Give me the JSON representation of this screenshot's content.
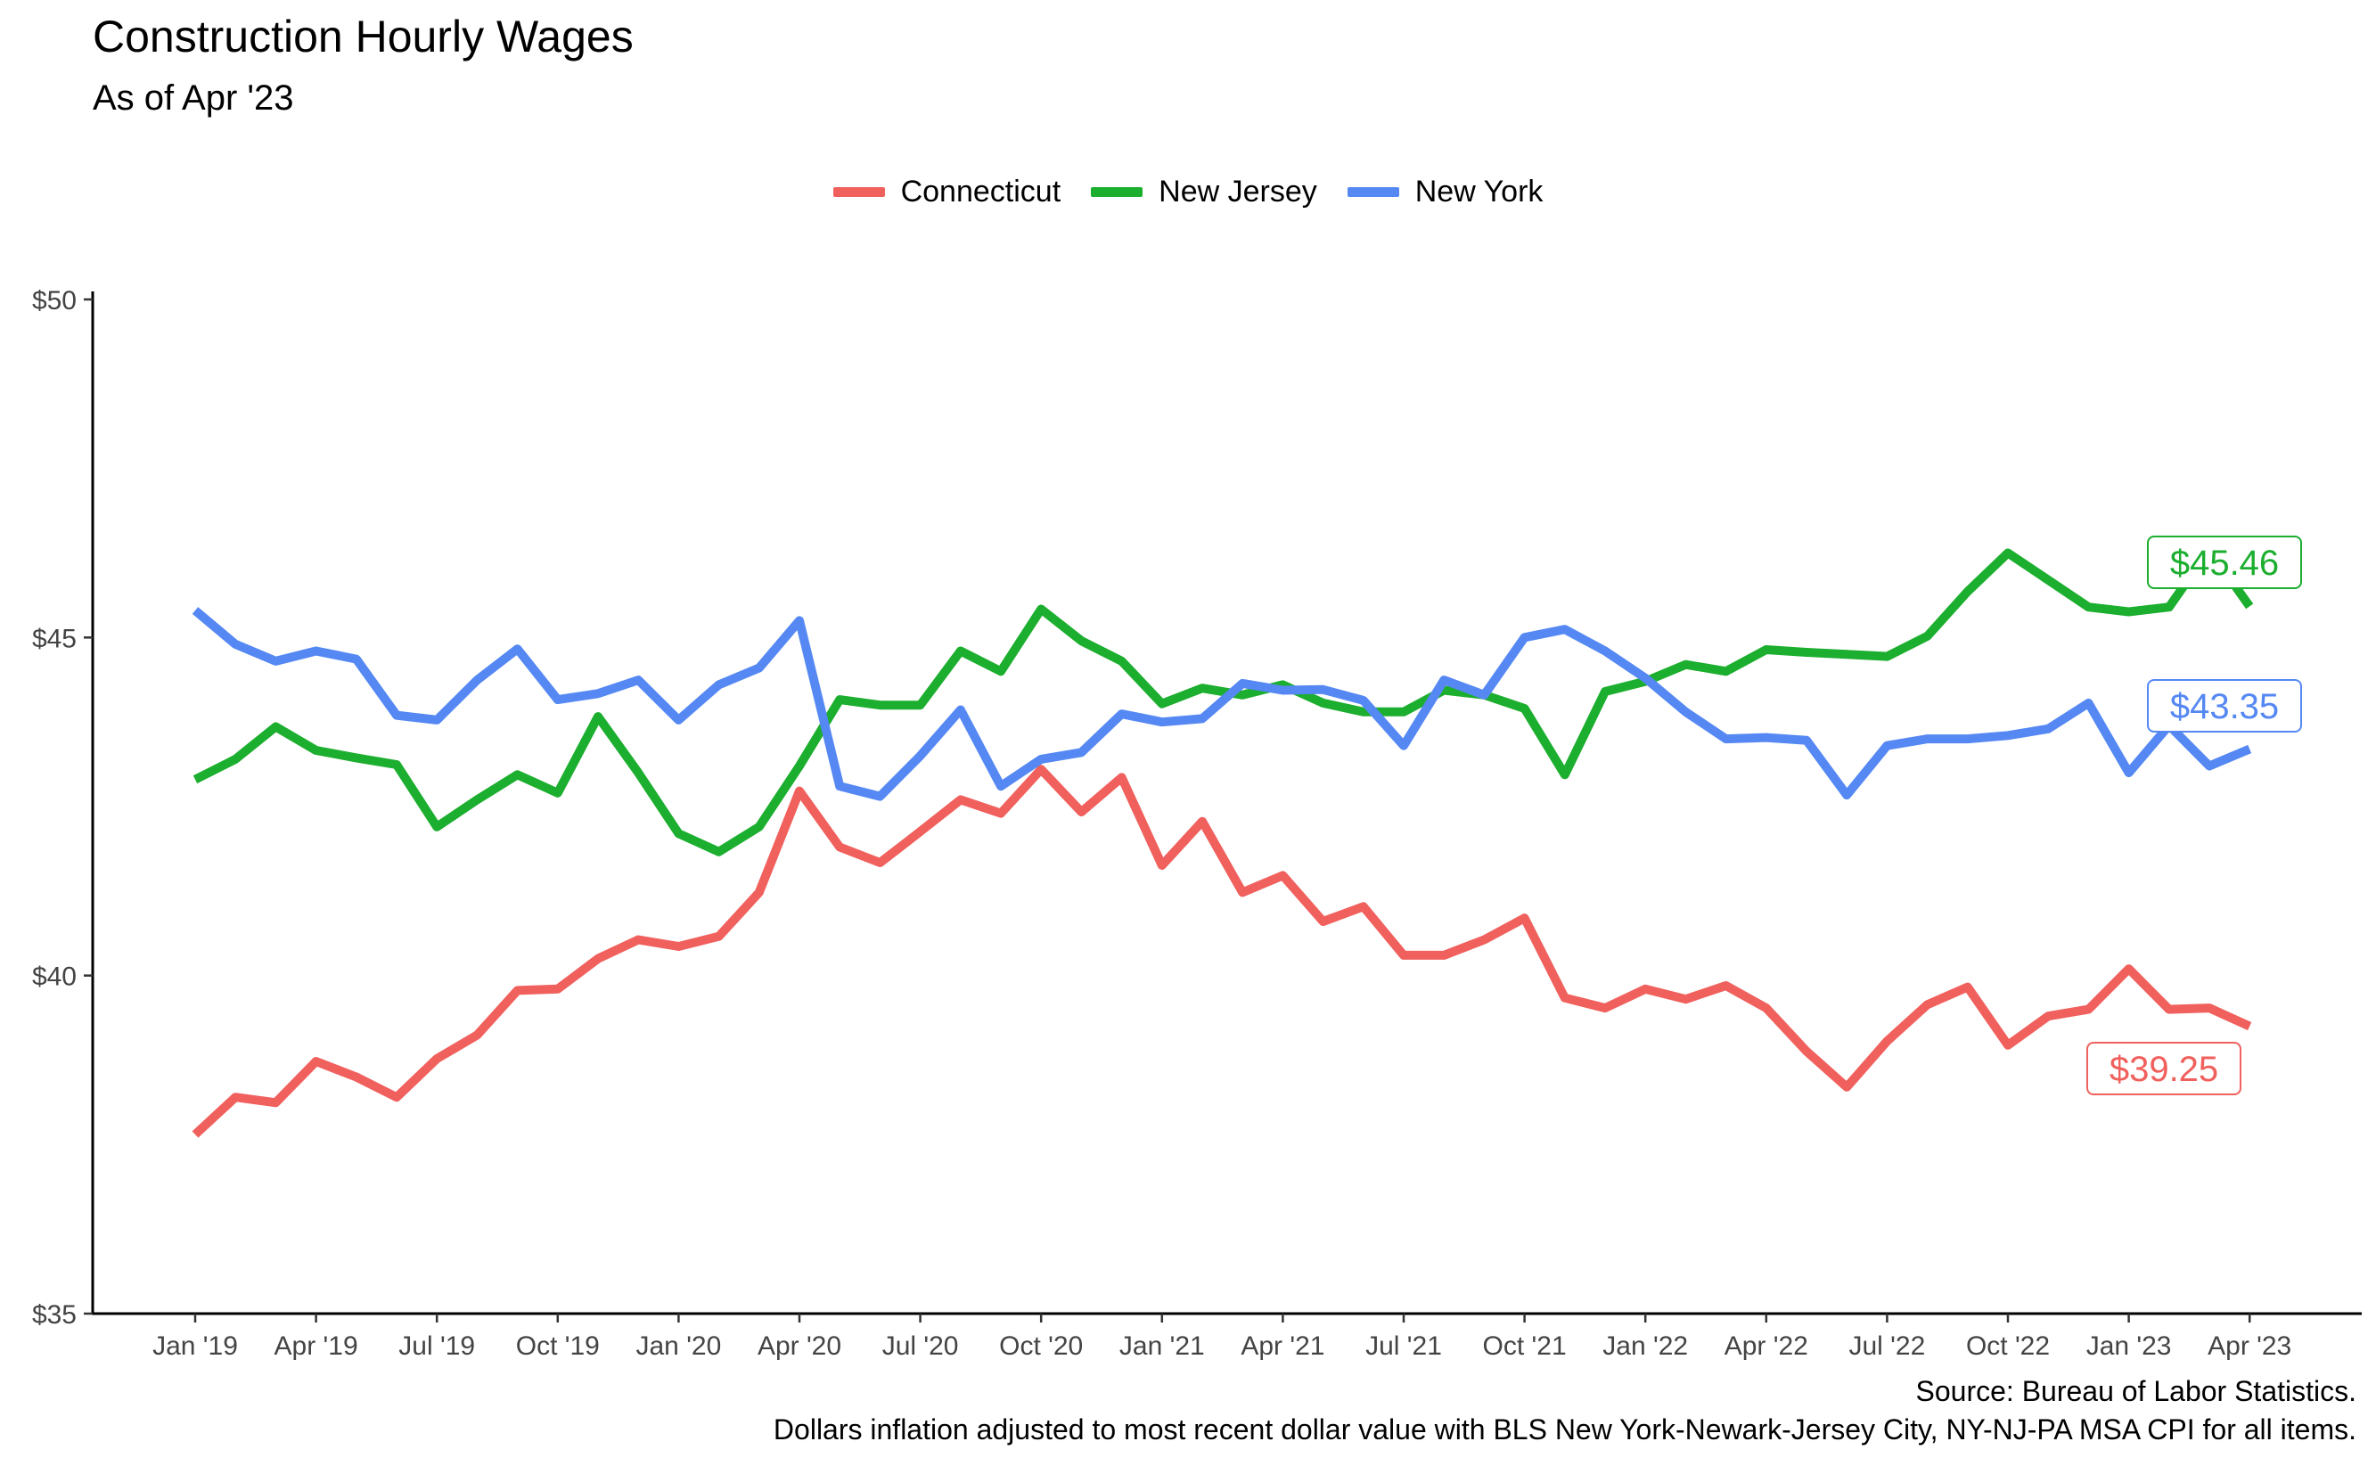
{
  "chart_data": {
    "type": "line",
    "title": "Construction Hourly Wages",
    "subtitle": "As of Apr '23",
    "caption_source": "Source: Bureau of Labor Statistics.",
    "caption_note": "Dollars inflation adjusted to most recent dollar value with BLS New York-Newark-Jersey City, NY-NJ-PA MSA CPI for all items.",
    "ylim": [
      35,
      50
    ],
    "y_ticks": [
      35,
      40,
      45,
      50
    ],
    "y_tick_labels": [
      "$35",
      "$40",
      "$45",
      "$50"
    ],
    "x_ticks": [
      0,
      3,
      6,
      9,
      12,
      15,
      18,
      21,
      24,
      27,
      30,
      33,
      36,
      39,
      42,
      45,
      48,
      51
    ],
    "x_tick_labels": [
      "Jan '19",
      "Apr '19",
      "Jul '19",
      "Oct '19",
      "Jan '20",
      "Apr '20",
      "Jul '20",
      "Oct '20",
      "Jan '21",
      "Apr '21",
      "Jul '21",
      "Oct '21",
      "Jan '22",
      "Apr '22",
      "Jul '22",
      "Oct '22",
      "Jan '23",
      "Apr '23"
    ],
    "x": [
      "Jan '19",
      "Feb '19",
      "Mar '19",
      "Apr '19",
      "May '19",
      "Jun '19",
      "Jul '19",
      "Aug '19",
      "Sep '19",
      "Oct '19",
      "Nov '19",
      "Dec '19",
      "Jan '20",
      "Feb '20",
      "Mar '20",
      "Apr '20",
      "May '20",
      "Jun '20",
      "Jul '20",
      "Aug '20",
      "Sep '20",
      "Oct '20",
      "Nov '20",
      "Dec '20",
      "Jan '21",
      "Feb '21",
      "Mar '21",
      "Apr '21",
      "May '21",
      "Jun '21",
      "Jul '21",
      "Aug '21",
      "Sep '21",
      "Oct '21",
      "Nov '21",
      "Dec '21",
      "Jan '22",
      "Feb '22",
      "Mar '22",
      "Apr '22",
      "May '22",
      "Jun '22",
      "Jul '22",
      "Aug '22",
      "Sep '22",
      "Oct '22",
      "Nov '22",
      "Dec '22",
      "Jan '23",
      "Feb '23",
      "Mar '23",
      "Apr '23"
    ],
    "legend_position": "top",
    "grid": false,
    "series": [
      {
        "name": "Connecticut",
        "color": "#f0605d",
        "end_label": "$39.25",
        "values": [
          37.65,
          38.2,
          38.12,
          38.73,
          38.5,
          38.2,
          38.77,
          39.12,
          39.78,
          39.8,
          40.25,
          40.53,
          40.43,
          40.58,
          41.23,
          42.73,
          41.9,
          41.67,
          42.13,
          42.6,
          42.4,
          43.05,
          42.42,
          42.93,
          41.63,
          42.28,
          41.23,
          41.48,
          40.8,
          41.02,
          40.3,
          40.3,
          40.53,
          40.85,
          39.67,
          39.52,
          39.8,
          39.65,
          39.85,
          39.52,
          38.88,
          38.35,
          39.03,
          39.57,
          39.83,
          38.97,
          39.4,
          39.5,
          40.1,
          39.5,
          39.52,
          39.25
        ]
      },
      {
        "name": "New Jersey",
        "color": "#1cae2e",
        "end_label": "$45.46",
        "values": [
          42.9,
          43.2,
          43.68,
          43.33,
          43.22,
          43.12,
          42.2,
          42.6,
          42.97,
          42.7,
          43.83,
          43.0,
          42.1,
          41.83,
          42.2,
          43.1,
          44.08,
          44.0,
          44.0,
          44.8,
          44.5,
          45.42,
          44.95,
          44.65,
          44.02,
          44.25,
          44.15,
          44.3,
          44.03,
          43.9,
          43.9,
          44.22,
          44.15,
          43.95,
          42.97,
          44.2,
          44.35,
          44.6,
          44.5,
          44.82,
          44.78,
          44.75,
          44.72,
          45.02,
          45.68,
          46.25,
          45.85,
          45.45,
          45.38,
          45.45,
          46.3,
          45.46
        ]
      },
      {
        "name": "New York",
        "color": "#5588f3",
        "end_label": "$43.35",
        "values": [
          45.4,
          44.9,
          44.65,
          44.8,
          44.68,
          43.85,
          43.78,
          44.37,
          44.83,
          44.08,
          44.17,
          44.37,
          43.78,
          44.3,
          44.55,
          45.25,
          42.8,
          42.65,
          43.25,
          43.93,
          42.8,
          43.2,
          43.3,
          43.87,
          43.75,
          43.8,
          44.32,
          44.22,
          44.23,
          44.07,
          43.4,
          44.37,
          44.15,
          45.0,
          45.12,
          44.8,
          44.4,
          43.9,
          43.5,
          43.52,
          43.48,
          42.67,
          43.4,
          43.5,
          43.5,
          43.55,
          43.65,
          44.03,
          43.0,
          43.7,
          43.1,
          43.35
        ]
      }
    ]
  }
}
